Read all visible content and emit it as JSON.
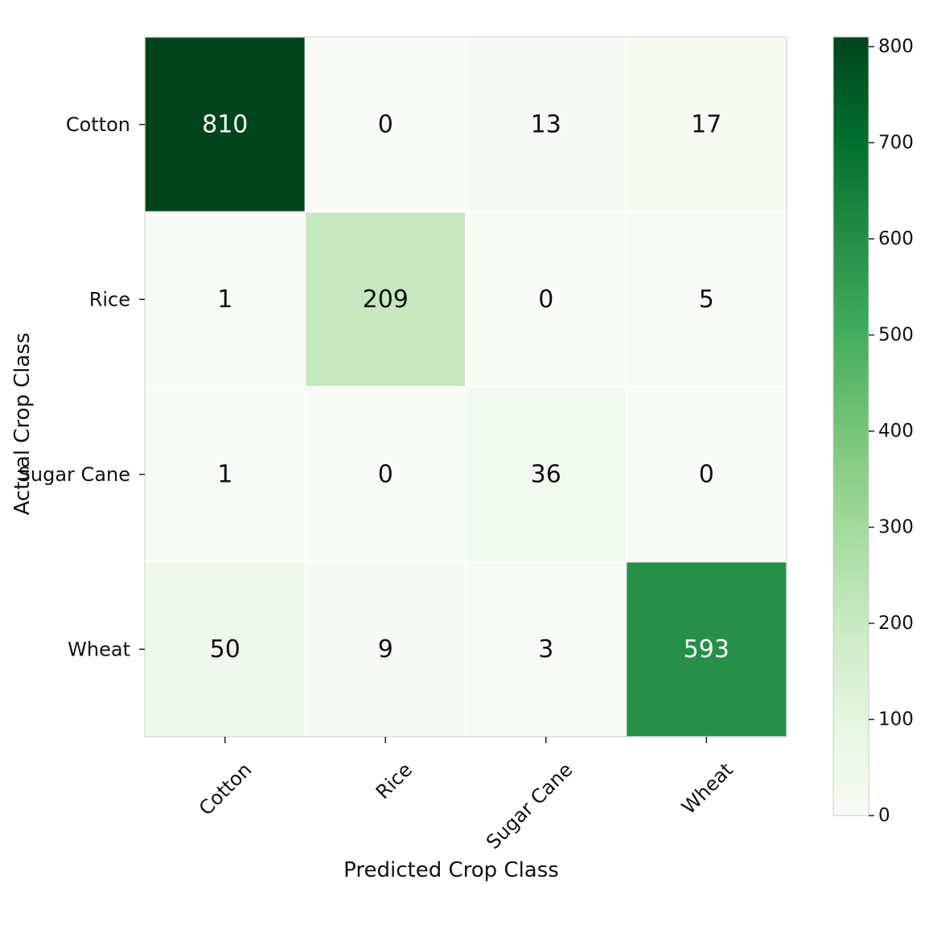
{
  "chart_data": {
    "type": "heatmap",
    "title": "",
    "xlabel": "Predicted Crop Class",
    "ylabel": "Actual Crop Class",
    "x_categories": [
      "Cotton",
      "Rice",
      "Sugar Cane",
      "Wheat"
    ],
    "y_categories": [
      "Cotton",
      "Rice",
      "Sugar Cane",
      "Wheat"
    ],
    "values": [
      [
        810,
        0,
        13,
        17
      ],
      [
        1,
        209,
        0,
        5
      ],
      [
        1,
        0,
        36,
        0
      ],
      [
        50,
        9,
        3,
        593
      ]
    ],
    "colormap": "Greens",
    "colorbar": {
      "range": [
        0,
        810
      ],
      "ticks": [
        0,
        100,
        200,
        300,
        400,
        500,
        600,
        700,
        800
      ]
    },
    "colors": {
      "low": "#f7fcf5",
      "high": "#00441b"
    }
  }
}
